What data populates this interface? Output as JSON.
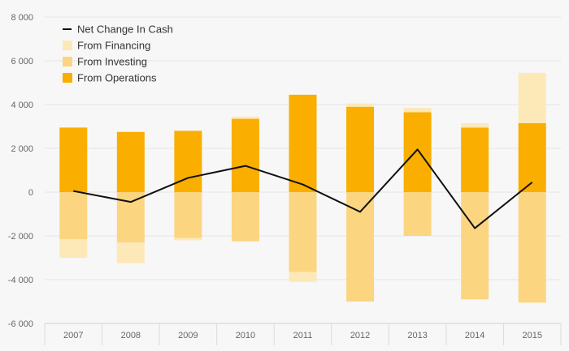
{
  "chart_data": {
    "type": "bar",
    "categories": [
      "2007",
      "2008",
      "2009",
      "2010",
      "2011",
      "2012",
      "2013",
      "2014",
      "2015"
    ],
    "series": [
      {
        "name": "Net Change In Cash",
        "kind": "line",
        "color": "#111111",
        "values": [
          50,
          -450,
          650,
          1200,
          350,
          -900,
          1950,
          -1650,
          450
        ]
      },
      {
        "name": "From Financing",
        "kind": "bar-stack",
        "color": "#fde8b8",
        "values": [
          -850,
          -950,
          -100,
          100,
          -450,
          150,
          200,
          200,
          2300
        ]
      },
      {
        "name": "From Investing",
        "kind": "bar-stack",
        "color": "#fcd581",
        "values": [
          -2150,
          -2300,
          -2100,
          -2250,
          -3650,
          -5000,
          -2000,
          -4900,
          -5050
        ]
      },
      {
        "name": "From Operations",
        "kind": "bar-stack",
        "color": "#f9ae00",
        "values": [
          2950,
          2750,
          2800,
          3350,
          4450,
          3900,
          3650,
          2950,
          3150
        ]
      }
    ],
    "ylim": [
      -6000,
      8000
    ],
    "yticks": [
      -6000,
      -4000,
      -2000,
      0,
      2000,
      4000,
      6000,
      8000
    ],
    "ytick_labels": [
      "-6 000",
      "-4 000",
      "-2 000",
      "0",
      "2 000",
      "4 000",
      "6 000",
      "8 000"
    ],
    "grid": true,
    "legend_position": "top-left"
  }
}
